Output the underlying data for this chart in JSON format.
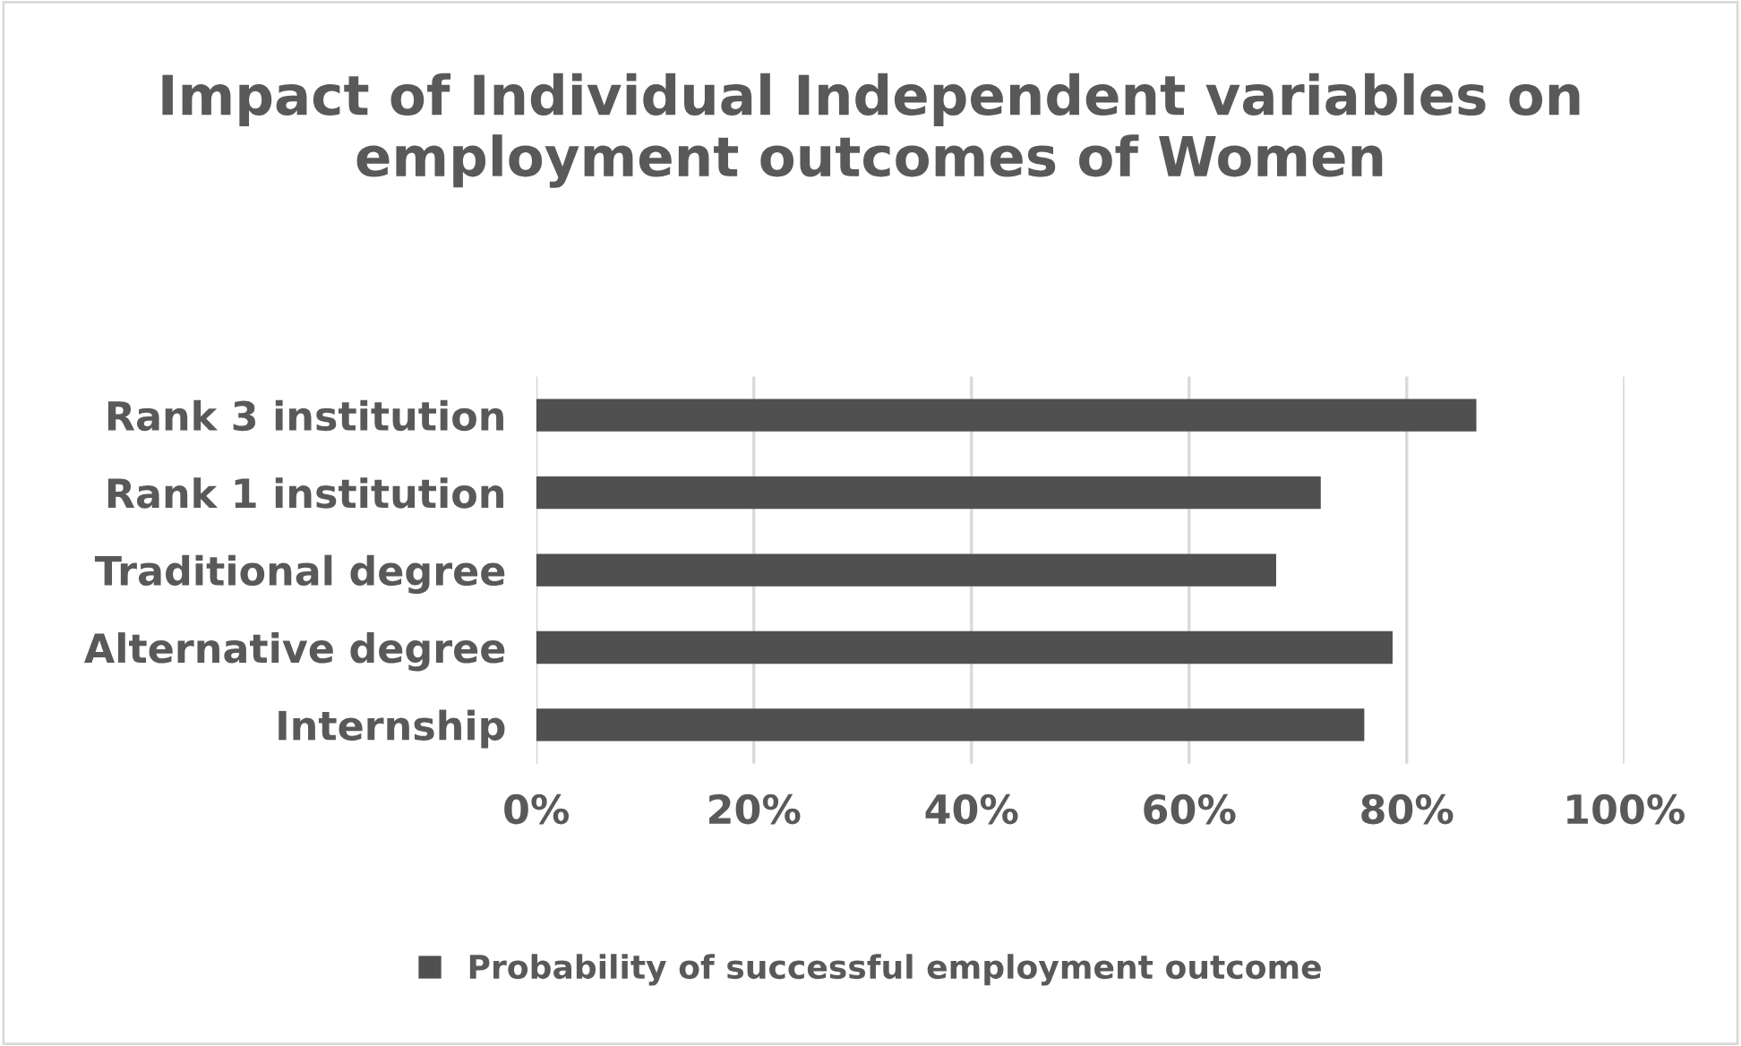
{
  "chart_data": {
    "type": "bar",
    "orientation": "horizontal",
    "title": "Impact of Individual Independent variables on employment outcomes of Women",
    "categories": [
      "Rank 3 institution",
      "Rank 1 institution",
      "Traditional degree",
      "Alternative degree",
      "Internship"
    ],
    "series": [
      {
        "name": "Probability of successful employment outcome",
        "color": "#505050",
        "values": [
          86.4,
          72.1,
          68.0,
          78.7,
          76.1
        ]
      }
    ],
    "xlim": [
      0,
      100
    ],
    "xticks": [
      {
        "value": 0,
        "label": "0%"
      },
      {
        "value": 20,
        "label": "20%"
      },
      {
        "value": 40,
        "label": "40%"
      },
      {
        "value": 60,
        "label": "60%"
      },
      {
        "value": 80,
        "label": "80%"
      },
      {
        "value": 100,
        "label": "100%"
      }
    ],
    "grid": "x",
    "legend": "bottom"
  }
}
